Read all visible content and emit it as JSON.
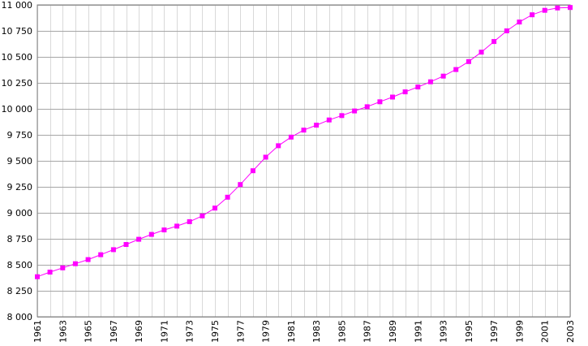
{
  "chart_data": {
    "type": "line",
    "title": "",
    "xlabel": "",
    "ylabel": "",
    "xlim": [
      1961,
      2003
    ],
    "ylim": [
      8000,
      11000
    ],
    "grid": true,
    "y_ticks": [
      {
        "value": 8000,
        "label": "8 000"
      },
      {
        "value": 8250,
        "label": "8 250"
      },
      {
        "value": 8500,
        "label": "8 500"
      },
      {
        "value": 8750,
        "label": "8 750"
      },
      {
        "value": 9000,
        "label": "9 000"
      },
      {
        "value": 9250,
        "label": "9 250"
      },
      {
        "value": 9500,
        "label": "9 500"
      },
      {
        "value": 9750,
        "label": "9 750"
      },
      {
        "value": 10000,
        "label": "10 000"
      },
      {
        "value": 10250,
        "label": "10 250"
      },
      {
        "value": 10500,
        "label": "10 500"
      },
      {
        "value": 10750,
        "label": "10 750"
      },
      {
        "value": 11000,
        "label": "11 000"
      }
    ],
    "x_tick_labels": [
      1961,
      1963,
      1965,
      1967,
      1969,
      1971,
      1973,
      1975,
      1977,
      1979,
      1981,
      1983,
      1985,
      1987,
      1989,
      1991,
      1993,
      1995,
      1997,
      1999,
      2001,
      2003
    ],
    "series": [
      {
        "color": "#ff00ff",
        "x": [
          1961,
          1962,
          1963,
          1964,
          1965,
          1966,
          1967,
          1968,
          1969,
          1970,
          1971,
          1972,
          1973,
          1974,
          1975,
          1976,
          1977,
          1978,
          1979,
          1980,
          1981,
          1982,
          1983,
          1984,
          1985,
          1986,
          1987,
          1988,
          1989,
          1990,
          1991,
          1992,
          1993,
          1994,
          1995,
          1996,
          1997,
          1998,
          1999,
          2000,
          2001,
          2002,
          2003
        ],
        "values": [
          8385,
          8430,
          8470,
          8510,
          8550,
          8597,
          8645,
          8695,
          8745,
          8792,
          8835,
          8872,
          8915,
          8970,
          9045,
          9150,
          9272,
          9405,
          9535,
          9645,
          9728,
          9795,
          9843,
          9893,
          9935,
          9980,
          10020,
          10068,
          10113,
          10163,
          10210,
          10260,
          10315,
          10378,
          10455,
          10545,
          10648,
          10750,
          10835,
          10905,
          10948,
          10970,
          10975
        ]
      }
    ]
  }
}
